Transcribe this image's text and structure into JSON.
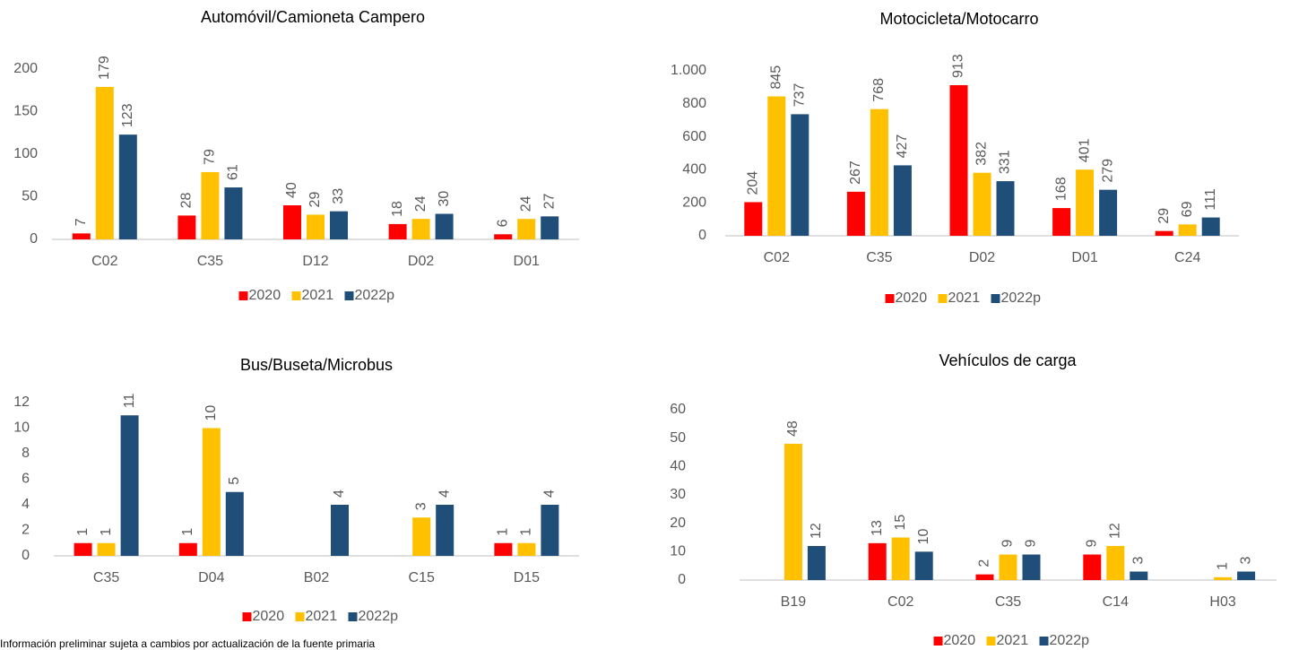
{
  "chart_data": [
    {
      "type": "bar",
      "title": "Automóvil/Camioneta Campero",
      "categories": [
        "C02",
        "C35",
        "D12",
        "D02",
        "D01"
      ],
      "series": [
        {
          "name": "2020",
          "color": "#ff0000",
          "values": [
            7,
            28,
            40,
            18,
            6
          ]
        },
        {
          "name": "2021",
          "color": "#ffc000",
          "values": [
            179,
            79,
            29,
            24,
            24
          ]
        },
        {
          "name": "2022p",
          "color": "#1f4e79",
          "values": [
            123,
            61,
            33,
            30,
            27
          ]
        }
      ],
      "ylim": [
        0,
        200
      ],
      "yticks": [
        0,
        50,
        100,
        150,
        200
      ],
      "grid": false,
      "legend": "bottom"
    },
    {
      "type": "bar",
      "title": "Motocicleta/Motocarro",
      "categories": [
        "C02",
        "C35",
        "D02",
        "D01",
        "C24"
      ],
      "series": [
        {
          "name": "2020",
          "color": "#ff0000",
          "values": [
            204,
            267,
            913,
            168,
            29
          ]
        },
        {
          "name": "2021",
          "color": "#ffc000",
          "values": [
            845,
            768,
            382,
            401,
            69
          ]
        },
        {
          "name": "2022p",
          "color": "#1f4e79",
          "values": [
            737,
            427,
            331,
            279,
            111
          ]
        }
      ],
      "ylim": [
        0,
        1000
      ],
      "yticks": [
        0,
        200,
        400,
        600,
        800,
        {
          "value": 1000,
          "label": "1.000"
        }
      ],
      "grid": false,
      "legend": "bottom"
    },
    {
      "type": "bar",
      "title": "Bus/Buseta/Microbus",
      "categories": [
        "C35",
        "D04",
        "B02",
        "C15",
        "D15"
      ],
      "series": [
        {
          "name": "2020",
          "color": "#ff0000",
          "values": [
            1,
            1,
            null,
            null,
            1
          ]
        },
        {
          "name": "2021",
          "color": "#ffc000",
          "values": [
            1,
            10,
            null,
            3,
            1
          ]
        },
        {
          "name": "2022p",
          "color": "#1f4e79",
          "values": [
            11,
            5,
            4,
            4,
            4
          ]
        }
      ],
      "ylim": [
        0,
        12
      ],
      "yticks": [
        0,
        2,
        4,
        6,
        8,
        10,
        12
      ],
      "grid": false,
      "legend": "bottom"
    },
    {
      "type": "bar",
      "title": "Vehículos de carga",
      "categories": [
        "B19",
        "C02",
        "C35",
        "C14",
        "H03"
      ],
      "series": [
        {
          "name": "2020",
          "color": "#ff0000",
          "values": [
            null,
            13,
            2,
            9,
            null
          ]
        },
        {
          "name": "2021",
          "color": "#ffc000",
          "values": [
            48,
            15,
            9,
            12,
            1
          ]
        },
        {
          "name": "2022p",
          "color": "#1f4e79",
          "values": [
            12,
            10,
            9,
            3,
            3
          ]
        }
      ],
      "ylim": [
        0,
        60
      ],
      "yticks": [
        0,
        10,
        20,
        30,
        40,
        50,
        60
      ],
      "grid": false,
      "legend": "bottom"
    }
  ],
  "note": "Información preliminar sujeta a cambios por actualización de la fuente primaria"
}
